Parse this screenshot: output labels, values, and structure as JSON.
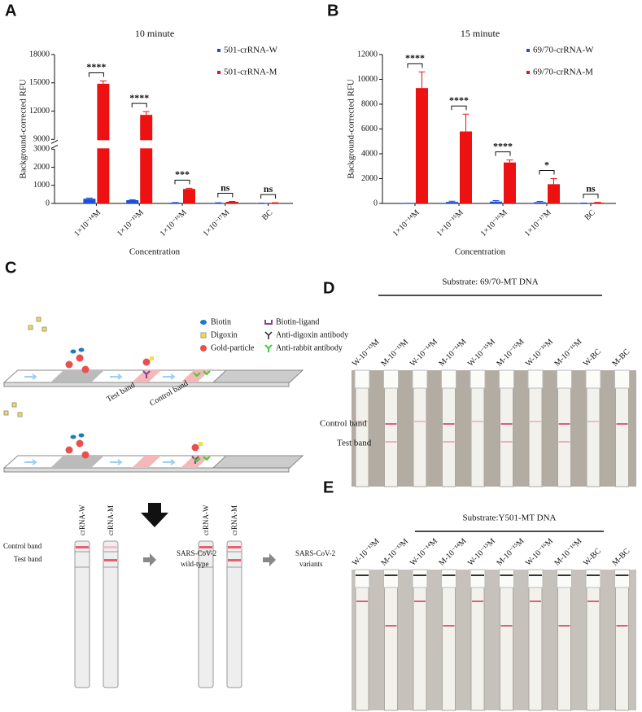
{
  "chart_data": [
    {
      "type": "bar",
      "panel_label": "A",
      "title": "10 minute",
      "x_label": "Concentration",
      "y_label": "Background-corrected RFU",
      "categories": [
        "1×10⁻¹⁴M",
        "1×10⁻¹⁵M",
        "1×10⁻¹⁶M",
        "1×10⁻¹⁷M",
        "BC"
      ],
      "series": [
        {
          "name": "501-crRNA-W",
          "color": "#1f4fd8",
          "values": [
            260,
            180,
            40,
            30,
            10
          ],
          "errors": [
            40,
            30,
            10,
            10,
            5
          ]
        },
        {
          "name": "501-crRNA-M",
          "color": "#ee1111",
          "values": [
            14900,
            11600,
            800,
            90,
            30
          ],
          "errors": [
            300,
            350,
            40,
            20,
            10
          ]
        }
      ],
      "ylim": [
        0,
        18000
      ],
      "yticks": [
        0,
        1000,
        2000,
        3000,
        9000,
        12000,
        15000,
        18000
      ],
      "y_break": [
        3000,
        9000
      ],
      "annotations": [
        "****",
        "****",
        "***",
        "ns",
        "ns"
      ],
      "legend": "upper right"
    },
    {
      "type": "bar",
      "panel_label": "B",
      "title": "15 minute",
      "x_label": "Concentration",
      "y_label": "Background-corrected RFU",
      "categories": [
        "1×10⁻¹⁴M",
        "1×10⁻¹⁵M",
        "1×10⁻¹⁶M",
        "1×10⁻¹⁷M",
        "BC"
      ],
      "series": [
        {
          "name": "69/70-crRNA-W",
          "color": "#1f4fd8",
          "values": [
            10,
            120,
            150,
            100,
            20
          ],
          "errors": [
            10,
            60,
            80,
            60,
            10
          ]
        },
        {
          "name": "69/70-crRNA-M",
          "color": "#ee1111",
          "values": [
            9300,
            5800,
            3300,
            1550,
            60
          ],
          "errors": [
            1300,
            1400,
            200,
            450,
            30
          ]
        }
      ],
      "ylim": [
        0,
        12000
      ],
      "yticks": [
        0,
        2000,
        4000,
        6000,
        8000,
        10000,
        12000
      ],
      "annotations": [
        "****",
        "****",
        "****",
        "*",
        "ns"
      ],
      "legend": "upper right"
    }
  ],
  "panel_c": {
    "label": "C",
    "legend": [
      "Biotin",
      "Digoxin",
      "Gold-particle",
      "Biotin-ligand",
      "Anti-digoxin antibody",
      "Anti-rabbit antibody"
    ],
    "test_band": "Test band",
    "control_band": "Control band",
    "strip_names": [
      "crRNA-W",
      "crRNA-M",
      "crRNA-W",
      "crRNA-M"
    ],
    "band_labels": [
      "Control band",
      "Test band"
    ],
    "results": [
      [
        "SARS-CoV-2",
        "wild-type"
      ],
      [
        "SARS-CoV-2",
        "variants"
      ]
    ]
  },
  "panel_d": {
    "label": "D",
    "substrate": "Substrate: 69/70-MT DNA",
    "strips": [
      "W-10⁻¹³M",
      "M-10⁻¹³M",
      "W-10⁻¹⁴M",
      "M-10⁻¹⁴M",
      "W-10⁻¹⁵M",
      "M-10⁻¹⁵M",
      "W-10⁻¹⁶M",
      "M-10⁻¹⁶M",
      "W-BC",
      "M-BC"
    ],
    "band_labels": [
      "Control band",
      "Test band"
    ]
  },
  "panel_e": {
    "label": "E",
    "substrate": "Substrate:Y501-MT DNA",
    "strips": [
      "W-10⁻¹³M",
      "M-10⁻¹³M",
      "W-10⁻¹⁴M",
      "M-10⁻¹⁴M",
      "W-10⁻¹⁵M",
      "M-10⁻¹⁵M",
      "W-10⁻¹⁶M",
      "M-10⁻¹⁶M",
      "W-BC",
      "M-BC"
    ]
  }
}
